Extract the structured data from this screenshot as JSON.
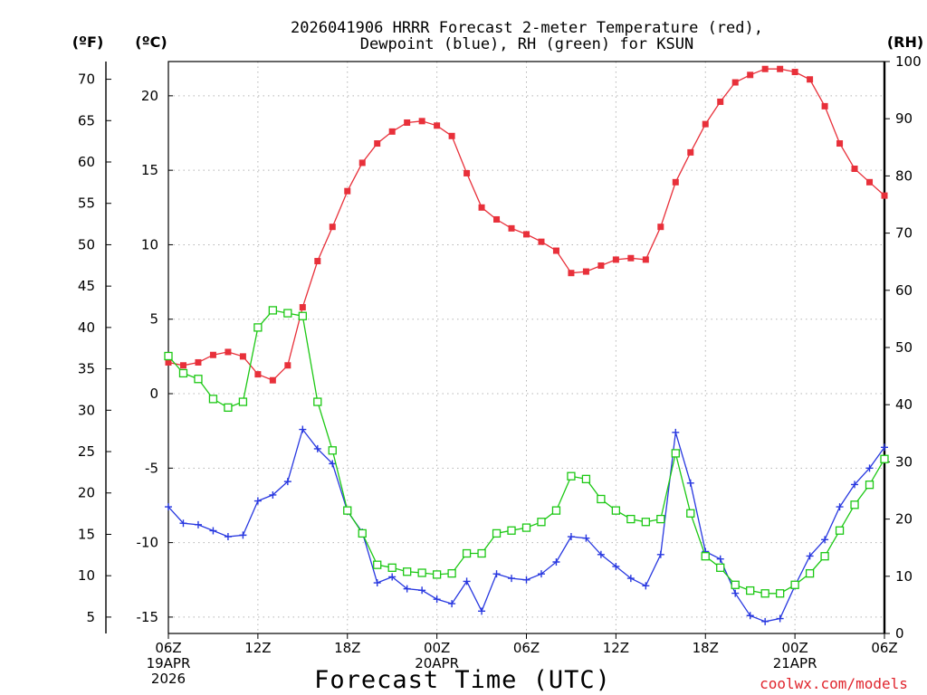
{
  "chart_data": {
    "type": "line",
    "title_lines": [
      "2026041906 HRRR Forecast 2-meter Temperature (red),",
      "Dewpoint (blue), RH (green) for KSUN"
    ],
    "xlabel": "Forecast Time (UTC)",
    "credit": "coolwx.com/models",
    "units": {
      "f": "(ºF)",
      "c": "(ºC)",
      "rh": "(RH)"
    },
    "x_range": [
      0,
      48
    ],
    "x_ticks": [
      {
        "x": 0,
        "lines": [
          "06Z",
          "19APR",
          "2026"
        ]
      },
      {
        "x": 6,
        "lines": [
          "12Z"
        ]
      },
      {
        "x": 12,
        "lines": [
          "18Z"
        ]
      },
      {
        "x": 18,
        "lines": [
          "00Z",
          "20APR"
        ]
      },
      {
        "x": 24,
        "lines": [
          "06Z"
        ]
      },
      {
        "x": 30,
        "lines": [
          "12Z"
        ]
      },
      {
        "x": 36,
        "lines": [
          "18Z"
        ]
      },
      {
        "x": 42,
        "lines": [
          "00Z",
          "21APR"
        ]
      },
      {
        "x": 48,
        "lines": [
          "06Z"
        ]
      }
    ],
    "c_range": [
      -16.1,
      22.3
    ],
    "c_ticks": [
      "-15",
      "-10",
      "-5",
      "0",
      "5",
      "10",
      "15",
      "20"
    ],
    "f_ticks": [
      "5",
      "10",
      "15",
      "20",
      "25",
      "30",
      "35",
      "40",
      "45",
      "50",
      "55",
      "60",
      "65",
      "70"
    ],
    "rh_range": [
      0,
      100
    ],
    "rh_ticks": [
      "0",
      "10",
      "20",
      "30",
      "40",
      "50",
      "60",
      "70",
      "80",
      "90",
      "100"
    ],
    "series": [
      {
        "name": "Temperature (°C)",
        "axis": "c",
        "color": "#e8303a",
        "marker": "filled-square",
        "values": [
          2.1,
          1.9,
          2.1,
          2.6,
          2.8,
          2.5,
          1.3,
          0.9,
          1.9,
          5.8,
          8.9,
          11.2,
          13.6,
          15.5,
          16.8,
          17.6,
          18.2,
          18.3,
          18.0,
          17.3,
          14.8,
          12.5,
          11.7,
          11.1,
          10.7,
          10.2,
          9.6,
          8.1,
          8.2,
          8.6,
          9.0,
          9.1,
          9.0,
          11.2,
          14.2,
          16.2,
          18.1,
          19.6,
          20.9,
          21.4,
          21.8,
          21.8,
          21.6,
          21.1,
          19.3,
          16.8,
          15.1,
          14.2,
          13.3
        ]
      },
      {
        "name": "Dewpoint (°C)",
        "axis": "c",
        "color": "#2838e0",
        "marker": "plus",
        "values": [
          -7.6,
          -8.7,
          -8.8,
          -9.2,
          -9.6,
          -9.5,
          -7.2,
          -6.8,
          -5.9,
          -2.4,
          -3.7,
          -4.7,
          -7.9,
          -9.3,
          -12.7,
          -12.3,
          -13.1,
          -13.2,
          -13.8,
          -14.1,
          -12.6,
          -14.6,
          -12.1,
          -12.4,
          -12.5,
          -12.1,
          -11.3,
          -9.6,
          -9.7,
          -10.8,
          -11.6,
          -12.4,
          -12.9,
          -10.8,
          -2.6,
          -6.0,
          -10.6,
          -11.1,
          -13.4,
          -14.9,
          -15.3,
          -15.1,
          -12.9,
          -10.9,
          -9.8,
          -7.6,
          -6.1,
          -5.0,
          -3.6
        ]
      },
      {
        "name": "RH (%)",
        "axis": "rh",
        "color": "#1cc814",
        "marker": "open-square",
        "values": [
          48.5,
          45.5,
          44.5,
          41.0,
          39.5,
          40.5,
          53.5,
          56.5,
          56.0,
          55.5,
          40.5,
          32.0,
          21.5,
          17.5,
          12.0,
          11.5,
          10.8,
          10.6,
          10.3,
          10.5,
          14.0,
          14.0,
          17.5,
          18.0,
          18.5,
          19.5,
          21.5,
          27.5,
          27.0,
          23.5,
          21.5,
          20.0,
          19.5,
          20.0,
          31.5,
          21.0,
          13.5,
          11.5,
          8.5,
          7.5,
          7.0,
          7.0,
          8.5,
          10.5,
          13.5,
          18.0,
          22.5,
          26.0,
          30.5
        ]
      }
    ]
  }
}
